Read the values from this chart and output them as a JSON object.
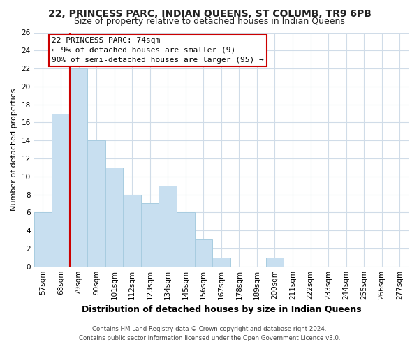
{
  "title": "22, PRINCESS PARC, INDIAN QUEENS, ST COLUMB, TR9 6PB",
  "subtitle": "Size of property relative to detached houses in Indian Queens",
  "xlabel": "Distribution of detached houses by size in Indian Queens",
  "ylabel": "Number of detached properties",
  "bar_color": "#c8dff0",
  "bar_edge_color": "#a8cce0",
  "categories": [
    "57sqm",
    "68sqm",
    "79sqm",
    "90sqm",
    "101sqm",
    "112sqm",
    "123sqm",
    "134sqm",
    "145sqm",
    "156sqm",
    "167sqm",
    "178sqm",
    "189sqm",
    "200sqm",
    "211sqm",
    "222sqm",
    "233sqm",
    "244sqm",
    "255sqm",
    "266sqm",
    "277sqm"
  ],
  "values": [
    6,
    17,
    22,
    14,
    11,
    8,
    7,
    9,
    6,
    3,
    1,
    0,
    0,
    1,
    0,
    0,
    0,
    0,
    0,
    0,
    0
  ],
  "ylim": [
    0,
    26
  ],
  "yticks": [
    0,
    2,
    4,
    6,
    8,
    10,
    12,
    14,
    16,
    18,
    20,
    22,
    24,
    26
  ],
  "property_line_color": "#cc0000",
  "property_line_x": 1.5,
  "annotation_title": "22 PRINCESS PARC: 74sqm",
  "annotation_line1": "← 9% of detached houses are smaller (9)",
  "annotation_line2": "90% of semi-detached houses are larger (95) →",
  "annotation_box_color": "#ffffff",
  "annotation_box_edge": "#cc0000",
  "footer1": "Contains HM Land Registry data © Crown copyright and database right 2024.",
  "footer2": "Contains public sector information licensed under the Open Government Licence v3.0.",
  "background_color": "#ffffff",
  "grid_color": "#d0dce8",
  "title_fontsize": 10,
  "subtitle_fontsize": 9,
  "xlabel_fontsize": 9,
  "ylabel_fontsize": 8,
  "tick_fontsize": 7.5,
  "ann_fontsize": 8
}
